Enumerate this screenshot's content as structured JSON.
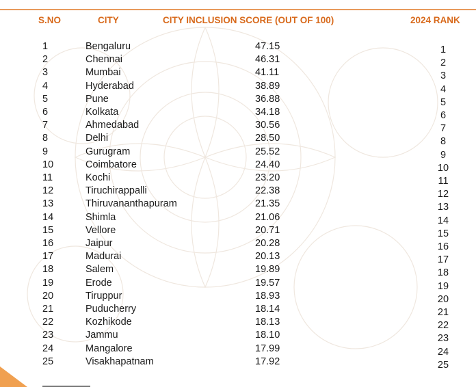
{
  "table": {
    "headers": {
      "sno": "S.NO",
      "city": "CITY",
      "score": "CITY INCLUSION SCORE (OUT OF 100)",
      "rank": "2024 RANK"
    },
    "rows": [
      {
        "sno": "1",
        "city": "Bengaluru",
        "score": "47.15",
        "rank": "1"
      },
      {
        "sno": "2",
        "city": "Chennai",
        "score": "46.31",
        "rank": "2"
      },
      {
        "sno": "3",
        "city": "Mumbai",
        "score": "41.11",
        "rank": "3"
      },
      {
        "sno": "4",
        "city": "Hyderabad",
        "score": "38.89",
        "rank": "4"
      },
      {
        "sno": "5",
        "city": "Pune",
        "score": "36.88",
        "rank": "5"
      },
      {
        "sno": "6",
        "city": "Kolkata",
        "score": "34.18",
        "rank": "6"
      },
      {
        "sno": "7",
        "city": "Ahmedabad",
        "score": "30.56",
        "rank": "7"
      },
      {
        "sno": "8",
        "city": "Delhi",
        "score": "28.50",
        "rank": "8"
      },
      {
        "sno": "9",
        "city": "Gurugram",
        "score": "25.52",
        "rank": "9"
      },
      {
        "sno": "10",
        "city": "Coimbatore",
        "score": "24.40",
        "rank": "10"
      },
      {
        "sno": "11",
        "city": "Kochi",
        "score": "23.20",
        "rank": "11"
      },
      {
        "sno": "12",
        "city": "Tiruchirappalli",
        "score": "22.38",
        "rank": "12"
      },
      {
        "sno": "13",
        "city": "Thiruvananthapuram",
        "score": "21.35",
        "rank": "13"
      },
      {
        "sno": "14",
        "city": "Shimla",
        "score": "21.06",
        "rank": "14"
      },
      {
        "sno": "15",
        "city": "Vellore",
        "score": "20.71",
        "rank": "15"
      },
      {
        "sno": "16",
        "city": "Jaipur",
        "score": "20.28",
        "rank": "16"
      },
      {
        "sno": "17",
        "city": "Madurai",
        "score": "20.13",
        "rank": "17"
      },
      {
        "sno": "18",
        "city": "Salem",
        "score": "19.89",
        "rank": "18"
      },
      {
        "sno": "19",
        "city": "Erode",
        "score": "19.57",
        "rank": "19"
      },
      {
        "sno": "20",
        "city": "Tiruppur",
        "score": "18.93",
        "rank": "20"
      },
      {
        "sno": "21",
        "city": "Puducherry",
        "score": "18.14",
        "rank": "21"
      },
      {
        "sno": "22",
        "city": "Kozhikode",
        "score": "18.13",
        "rank": "22"
      },
      {
        "sno": "23",
        "city": "Jammu",
        "score": "18.10",
        "rank": "23"
      },
      {
        "sno": "24",
        "city": "Mangalore",
        "score": "17.99",
        "rank": "24"
      },
      {
        "sno": "25",
        "city": "Visakhapatnam",
        "score": "17.92",
        "rank": "25"
      }
    ]
  },
  "colors": {
    "header_text": "#d86a1c",
    "rule": "#e89a5c",
    "corner_accent": "#f0a050"
  }
}
